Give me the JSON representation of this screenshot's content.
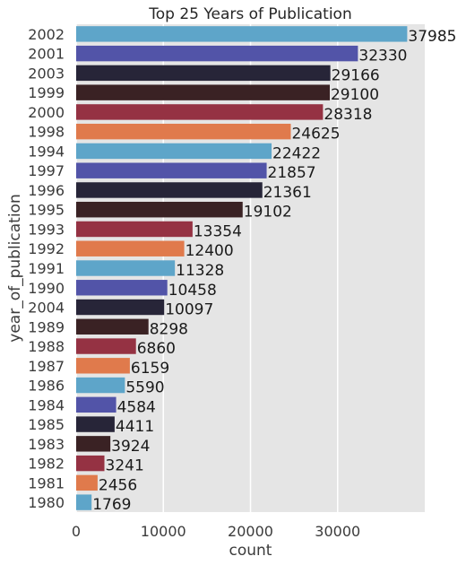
{
  "chart_data": {
    "type": "bar",
    "orientation": "horizontal",
    "title": "Top 25 Years of Publication",
    "xlabel": "count",
    "ylabel": "year_of_publication",
    "xlim": [
      0,
      40000
    ],
    "xticks": [
      "0",
      "10000",
      "20000",
      "30000"
    ],
    "xtick_values": [
      0,
      10000,
      20000,
      30000
    ],
    "grid": true,
    "background": "#e5e5e5",
    "palette": [
      "#5ea5c9",
      "#5254a8",
      "#272538",
      "#3a2224",
      "#953243",
      "#e07a4c"
    ],
    "categories": [
      "2002",
      "2001",
      "2003",
      "1999",
      "2000",
      "1998",
      "1994",
      "1997",
      "1996",
      "1995",
      "1993",
      "1992",
      "1991",
      "1990",
      "2004",
      "1989",
      "1988",
      "1987",
      "1986",
      "1984",
      "1985",
      "1983",
      "1982",
      "1981",
      "1980"
    ],
    "values": [
      37985,
      32330,
      29166,
      29100,
      28318,
      24625,
      22422,
      21857,
      21361,
      19102,
      13354,
      12400,
      11328,
      10458,
      10097,
      8298,
      6860,
      6159,
      5590,
      4584,
      4411,
      3924,
      3241,
      2456,
      1769
    ],
    "value_labels": [
      "37985",
      "32330",
      "29166",
      "29100",
      "28318",
      "24625",
      "22422",
      "21857",
      "21361",
      "19102",
      "13354",
      "12400",
      "11328",
      "10458",
      "10097",
      "8298",
      "6860",
      "6159",
      "5590",
      "4584",
      "4411",
      "3924",
      "3241",
      "2456",
      "1769"
    ]
  }
}
